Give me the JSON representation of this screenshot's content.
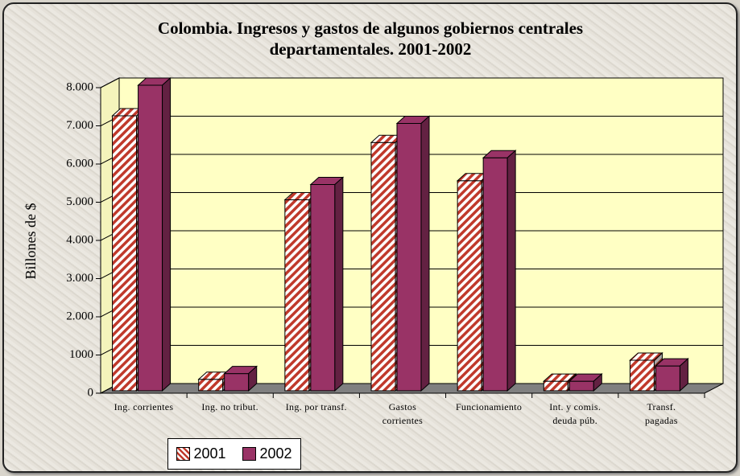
{
  "chart_data": {
    "type": "bar3d",
    "title": "Colombia. Ingresos y gastos de algunos gobiernos centrales\ndepartamentales. 2001-2002",
    "y_label": "Billones de $",
    "categories": [
      "Ing. corrientes",
      "Ing. no tribut.",
      "Ing. por transf.",
      "Gastos\ncorrientes",
      "Funcionamiento",
      "Int. y comis.\ndeuda púb.",
      "Transf.\npagadas"
    ],
    "series": [
      {
        "name": "2001",
        "color": "#c0392b",
        "pattern": "hatch",
        "values": [
          7200,
          300,
          5000,
          6500,
          5500,
          250,
          800
        ]
      },
      {
        "name": "2002",
        "color": "#993366",
        "pattern": "solid",
        "values": [
          8000,
          450,
          5400,
          7000,
          6100,
          250,
          650
        ]
      }
    ],
    "ylim": [
      0,
      8000
    ],
    "yticks": [
      0,
      1000,
      {
        "value": 2000,
        "label": "2.000"
      },
      {
        "value": 3000,
        "label": "3.000"
      },
      {
        "value": 4000,
        "label": "4.000"
      },
      {
        "value": 5000,
        "label": "5.000"
      },
      {
        "value": 6000,
        "label": "6.000"
      },
      {
        "value": 7000,
        "label": "7.000"
      },
      {
        "value": 8000,
        "label": "8.000"
      }
    ],
    "grid": true,
    "legend": "bottom-left"
  }
}
